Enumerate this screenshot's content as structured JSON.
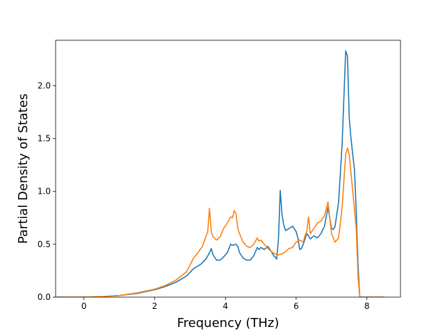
{
  "chart_data": {
    "type": "line",
    "title": "",
    "xlabel": "Frequency (THz)",
    "ylabel": "Partial Density of States",
    "xlim": [
      -0.8,
      8.95
    ],
    "ylim": [
      0,
      2.43
    ],
    "xticks": [
      0,
      2,
      4,
      6,
      8
    ],
    "xtick_labels": [
      "0",
      "2",
      "4",
      "6",
      "8"
    ],
    "yticks": [
      0.0,
      0.5,
      1.0,
      1.5,
      2.0
    ],
    "ytick_labels": [
      "0.0",
      "0.5",
      "1.0",
      "1.5",
      "2.0"
    ],
    "grid": false,
    "legend": "none",
    "series": [
      {
        "color": "#1f77b4",
        "x": [
          -0.8,
          0.0,
          0.5,
          1.0,
          1.5,
          2.0,
          2.3,
          2.6,
          2.9,
          3.1,
          3.3,
          3.45,
          3.55,
          3.6,
          3.65,
          3.75,
          3.85,
          3.95,
          4.05,
          4.15,
          4.2,
          4.3,
          4.35,
          4.4,
          4.5,
          4.6,
          4.7,
          4.8,
          4.9,
          4.95,
          5.0,
          5.1,
          5.2,
          5.3,
          5.35,
          5.4,
          5.45,
          5.5,
          5.55,
          5.6,
          5.65,
          5.7,
          5.8,
          5.9,
          6.0,
          6.05,
          6.1,
          6.15,
          6.2,
          6.3,
          6.35,
          6.4,
          6.5,
          6.6,
          6.7,
          6.8,
          6.9,
          7.0,
          7.05,
          7.1,
          7.2,
          7.3,
          7.4,
          7.45,
          7.5,
          7.55,
          7.65,
          7.7,
          7.75,
          7.8,
          8.0,
          8.5
        ],
        "y": [
          0.0,
          0.0,
          0.005,
          0.015,
          0.035,
          0.07,
          0.1,
          0.14,
          0.2,
          0.27,
          0.31,
          0.36,
          0.42,
          0.46,
          0.4,
          0.35,
          0.35,
          0.38,
          0.42,
          0.5,
          0.49,
          0.5,
          0.48,
          0.42,
          0.37,
          0.35,
          0.35,
          0.39,
          0.47,
          0.45,
          0.47,
          0.45,
          0.48,
          0.43,
          0.4,
          0.38,
          0.36,
          0.55,
          1.01,
          0.78,
          0.68,
          0.63,
          0.65,
          0.67,
          0.62,
          0.56,
          0.45,
          0.46,
          0.5,
          0.6,
          0.58,
          0.55,
          0.58,
          0.56,
          0.6,
          0.67,
          0.85,
          0.65,
          0.64,
          0.67,
          0.9,
          1.45,
          2.33,
          2.28,
          1.7,
          1.5,
          1.2,
          0.8,
          0.3,
          0.0,
          0.0,
          0.0
        ]
      },
      {
        "color": "#ff7f0e",
        "x": [
          -0.8,
          0.0,
          0.5,
          1.0,
          1.5,
          2.0,
          2.3,
          2.6,
          2.9,
          3.1,
          3.2,
          3.35,
          3.5,
          3.55,
          3.6,
          3.65,
          3.75,
          3.85,
          3.95,
          4.05,
          4.15,
          4.2,
          4.25,
          4.3,
          4.35,
          4.4,
          4.5,
          4.6,
          4.7,
          4.8,
          4.9,
          4.95,
          5.0,
          5.1,
          5.2,
          5.3,
          5.4,
          5.5,
          5.6,
          5.7,
          5.8,
          5.9,
          6.0,
          6.1,
          6.2,
          6.25,
          6.3,
          6.35,
          6.4,
          6.5,
          6.6,
          6.7,
          6.8,
          6.9,
          6.95,
          7.0,
          7.1,
          7.2,
          7.3,
          7.4,
          7.45,
          7.5,
          7.6,
          7.7,
          7.75,
          7.8,
          8.0,
          8.5
        ],
        "y": [
          0.0,
          0.0,
          0.005,
          0.015,
          0.04,
          0.075,
          0.11,
          0.16,
          0.24,
          0.37,
          0.41,
          0.48,
          0.62,
          0.84,
          0.62,
          0.57,
          0.54,
          0.57,
          0.65,
          0.7,
          0.76,
          0.75,
          0.82,
          0.79,
          0.65,
          0.6,
          0.52,
          0.48,
          0.47,
          0.5,
          0.56,
          0.53,
          0.54,
          0.5,
          0.46,
          0.43,
          0.41,
          0.4,
          0.41,
          0.43,
          0.46,
          0.47,
          0.52,
          0.54,
          0.52,
          0.58,
          0.62,
          0.76,
          0.6,
          0.65,
          0.7,
          0.72,
          0.77,
          0.9,
          0.75,
          0.6,
          0.52,
          0.56,
          0.85,
          1.35,
          1.41,
          1.35,
          1.0,
          0.65,
          0.2,
          0.0,
          0.0,
          0.0
        ]
      }
    ]
  }
}
